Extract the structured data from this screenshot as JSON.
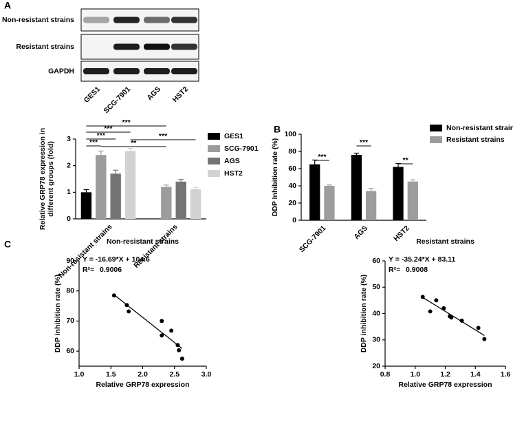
{
  "panel_labels": [
    "A",
    "B",
    "C"
  ],
  "blot": {
    "rows": [
      "Non-resistant strains",
      "Resistant strains",
      "GAPDH"
    ],
    "lanes": [
      "GES1",
      "SCG-7901",
      "AGS",
      "HST2"
    ]
  },
  "chart_data": [
    {
      "type": "bar",
      "ylabel": [
        "Relative GRP78 expression in",
        "different groups (fold)"
      ],
      "categories": [
        "Non-resistant strains",
        "Resistant strains"
      ],
      "series": [
        {
          "name": "GES1",
          "color": "#000000",
          "values": [
            1.0,
            null
          ],
          "errors": [
            0.1,
            null
          ]
        },
        {
          "name": "SCG-7901",
          "color": "#9c9c9c",
          "values": [
            2.4,
            1.2
          ],
          "errors": [
            0.15,
            0.07
          ]
        },
        {
          "name": "AGS",
          "color": "#747474",
          "values": [
            1.7,
            1.4
          ],
          "errors": [
            0.13,
            0.08
          ]
        },
        {
          "name": "HST2",
          "color": "#d2d2d2",
          "values": [
            2.55,
            1.12
          ],
          "errors": [
            0.1,
            0.07
          ]
        }
      ],
      "annotations": [
        "***",
        "***",
        "***",
        "***",
        "**",
        "***"
      ],
      "ylim": [
        0,
        3
      ],
      "yticks": [
        0,
        1,
        2,
        3
      ]
    },
    {
      "type": "bar",
      "ylabel": [
        "DDP Inhibition rate (%)"
      ],
      "categories": [
        "SCG-7901",
        "AGS",
        "HST2"
      ],
      "series": [
        {
          "name": "Non-resistant strains",
          "color": "#000000",
          "values": [
            65,
            76,
            62
          ],
          "errors": [
            5,
            2,
            4
          ]
        },
        {
          "name": "Resistant strains",
          "color": "#9c9c9c",
          "values": [
            40,
            34,
            45
          ],
          "errors": [
            1,
            3,
            2
          ]
        }
      ],
      "annotations": [
        "***",
        "***",
        "**"
      ],
      "ylim": [
        0,
        100
      ],
      "yticks": [
        0,
        20,
        40,
        60,
        80,
        100
      ]
    },
    {
      "type": "scatter",
      "title": "Non-resistant strains",
      "equation": "Y = -16.69*X + 104.6",
      "r2_label": "R²=",
      "r2": 0.9006,
      "fit": {
        "slope": -16.69,
        "intercept": 104.6
      },
      "xlabel": "Relative GRP78 expression",
      "ylabel": "DDP inhibition rate (%)",
      "x": [
        1.55,
        1.75,
        1.78,
        2.3,
        2.3,
        2.45,
        2.55,
        2.57,
        2.62
      ],
      "values": [
        78.5,
        75.3,
        73.2,
        70,
        65.2,
        66.8,
        62,
        60.3,
        57.5
      ],
      "color": "#000000",
      "xlim": [
        1,
        3
      ],
      "xticks": [
        {
          "value": 1,
          "label": "1.0"
        },
        1.5,
        {
          "value": 2,
          "label": "2.0"
        },
        2.5,
        {
          "value": 3,
          "label": "3.0"
        }
      ],
      "ylim": [
        55,
        90
      ],
      "yticks": [
        60,
        70,
        80,
        90
      ]
    },
    {
      "type": "scatter",
      "title": "Resistant strains",
      "equation": "Y = -35.24*X + 83.11",
      "r2_label": "R²=",
      "r2": 0.9008,
      "fit": {
        "slope": -35.24,
        "intercept": 83.11
      },
      "xlabel": "Relative GRP78 expression",
      "ylabel": "DDP inhibition rate (%)",
      "x": [
        1.05,
        1.1,
        1.14,
        1.19,
        1.23,
        1.24,
        1.31,
        1.42,
        1.46
      ],
      "values": [
        46.3,
        40.8,
        45,
        42,
        39,
        38.5,
        37.3,
        34.5,
        30.3
      ],
      "color": "#000000",
      "xlim": [
        0.8,
        1.6
      ],
      "xticks": [
        0.8,
        {
          "value": 1,
          "label": "1.0"
        },
        1.2,
        1.4,
        1.6
      ],
      "ylim": [
        20,
        60
      ],
      "yticks": [
        20,
        30,
        40,
        50,
        60
      ]
    }
  ]
}
